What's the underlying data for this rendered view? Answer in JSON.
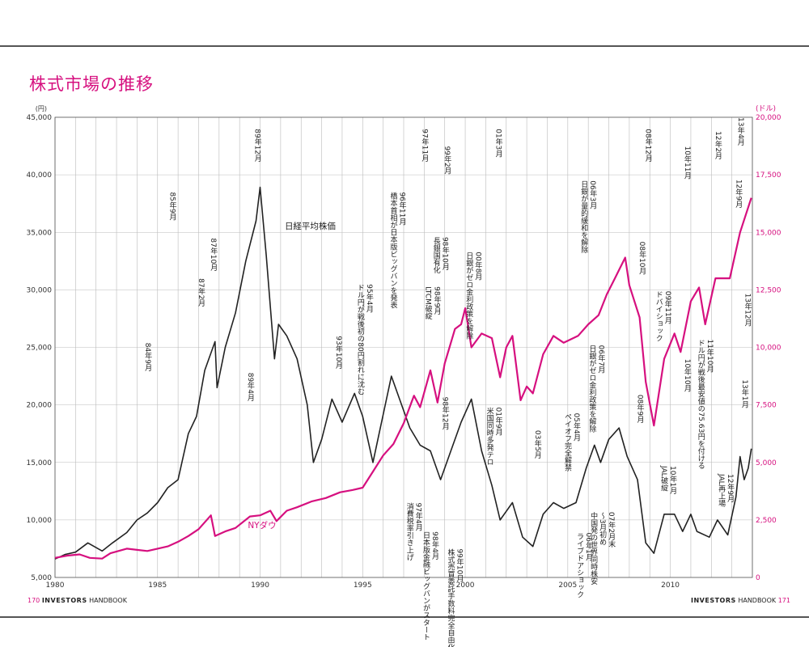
{
  "page": {
    "title": "株式市場の推移",
    "footer_left_num": "170",
    "footer_left_brand": "INVESTORS",
    "footer_left_sub": "HANDBOOK",
    "footer_right_brand": "INVESTORS",
    "footer_right_sub": "HANDBOOK",
    "footer_right_num": "171"
  },
  "colors": {
    "nikkei": "#222222",
    "dow": "#d6107f",
    "grid": "#bbbbbb",
    "title": "#d6107f"
  },
  "chart_data": {
    "type": "line",
    "title": "株式市場の推移",
    "x_range": [
      1980,
      2014
    ],
    "x_ticks": [
      "1980",
      "1985",
      "1990",
      "1995",
      "2000",
      "2005",
      "2010"
    ],
    "y_left": {
      "unit": "(円)",
      "range": [
        5000,
        45000
      ],
      "ticks": [
        "5,000",
        "10,000",
        "15,000",
        "20,000",
        "25,000",
        "30,000",
        "35,000",
        "40,000",
        "45,000"
      ]
    },
    "y_right": {
      "unit": "(ドル)",
      "range": [
        0,
        20000
      ],
      "ticks": [
        "0",
        "2,500",
        "5,000",
        "7,500",
        "10,000",
        "12,500",
        "15,000",
        "17,500",
        "20,000"
      ]
    },
    "grid": true,
    "series": [
      {
        "name": "日経平均株価",
        "axis": "left",
        "points": [
          [
            1980.0,
            6600
          ],
          [
            1980.5,
            7000
          ],
          [
            1981.0,
            7200
          ],
          [
            1981.6,
            8000
          ],
          [
            1982.3,
            7300
          ],
          [
            1982.8,
            8000
          ],
          [
            1983.5,
            8900
          ],
          [
            1984.0,
            10000
          ],
          [
            1984.5,
            10600
          ],
          [
            1985.0,
            11500
          ],
          [
            1985.5,
            12800
          ],
          [
            1986.0,
            13500
          ],
          [
            1986.5,
            17500
          ],
          [
            1986.9,
            19000
          ],
          [
            1987.3,
            23000
          ],
          [
            1987.8,
            25500
          ],
          [
            1987.9,
            21500
          ],
          [
            1988.3,
            25000
          ],
          [
            1988.8,
            28000
          ],
          [
            1989.3,
            32500
          ],
          [
            1989.8,
            36000
          ],
          [
            1990.0,
            38915
          ],
          [
            1990.3,
            33000
          ],
          [
            1990.7,
            24000
          ],
          [
            1990.9,
            27000
          ],
          [
            1991.3,
            26000
          ],
          [
            1991.8,
            24000
          ],
          [
            1992.3,
            20000
          ],
          [
            1992.6,
            15000
          ],
          [
            1993.0,
            17000
          ],
          [
            1993.5,
            20500
          ],
          [
            1994.0,
            18500
          ],
          [
            1994.6,
            21000
          ],
          [
            1995.0,
            19000
          ],
          [
            1995.5,
            15000
          ],
          [
            1995.8,
            17500
          ],
          [
            1996.4,
            22500
          ],
          [
            1996.8,
            20500
          ],
          [
            1997.3,
            18000
          ],
          [
            1997.8,
            16500
          ],
          [
            1998.3,
            16000
          ],
          [
            1998.8,
            13500
          ],
          [
            1999.3,
            16000
          ],
          [
            1999.8,
            18500
          ],
          [
            2000.3,
            20500
          ],
          [
            2000.8,
            16000
          ],
          [
            2001.3,
            13000
          ],
          [
            2001.7,
            10000
          ],
          [
            2002.3,
            11500
          ],
          [
            2002.8,
            8500
          ],
          [
            2003.3,
            7700
          ],
          [
            2003.8,
            10500
          ],
          [
            2004.3,
            11500
          ],
          [
            2004.8,
            11000
          ],
          [
            2005.4,
            11500
          ],
          [
            2005.9,
            14500
          ],
          [
            2006.3,
            16500
          ],
          [
            2006.6,
            15000
          ],
          [
            2007.0,
            17000
          ],
          [
            2007.5,
            18000
          ],
          [
            2007.9,
            15500
          ],
          [
            2008.4,
            13500
          ],
          [
            2008.8,
            8000
          ],
          [
            2009.2,
            7100
          ],
          [
            2009.7,
            10500
          ],
          [
            2010.2,
            10500
          ],
          [
            2010.6,
            9000
          ],
          [
            2011.0,
            10500
          ],
          [
            2011.3,
            9000
          ],
          [
            2011.9,
            8500
          ],
          [
            2012.3,
            10000
          ],
          [
            2012.8,
            8700
          ],
          [
            2013.2,
            12000
          ],
          [
            2013.4,
            15500
          ],
          [
            2013.6,
            13500
          ],
          [
            2013.8,
            14500
          ],
          [
            2013.95,
            16200
          ]
        ]
      },
      {
        "name": "NYダウ",
        "axis": "right",
        "points": [
          [
            1980.0,
            850
          ],
          [
            1980.6,
            950
          ],
          [
            1981.2,
            1000
          ],
          [
            1981.7,
            850
          ],
          [
            1982.3,
            820
          ],
          [
            1982.7,
            1050
          ],
          [
            1983.5,
            1250
          ],
          [
            1984.0,
            1200
          ],
          [
            1984.5,
            1150
          ],
          [
            1985.0,
            1250
          ],
          [
            1985.5,
            1350
          ],
          [
            1986.0,
            1550
          ],
          [
            1986.5,
            1800
          ],
          [
            1987.0,
            2100
          ],
          [
            1987.6,
            2700
          ],
          [
            1987.8,
            1800
          ],
          [
            1988.3,
            2000
          ],
          [
            1988.8,
            2150
          ],
          [
            1989.5,
            2650
          ],
          [
            1990.0,
            2700
          ],
          [
            1990.5,
            2900
          ],
          [
            1990.8,
            2450
          ],
          [
            1991.3,
            2900
          ],
          [
            1991.8,
            3050
          ],
          [
            1992.5,
            3300
          ],
          [
            1993.2,
            3450
          ],
          [
            1993.9,
            3700
          ],
          [
            1994.5,
            3800
          ],
          [
            1995.0,
            3900
          ],
          [
            1995.5,
            4600
          ],
          [
            1996.0,
            5300
          ],
          [
            1996.5,
            5800
          ],
          [
            1997.0,
            6700
          ],
          [
            1997.5,
            7900
          ],
          [
            1997.8,
            7400
          ],
          [
            1998.3,
            9000
          ],
          [
            1998.65,
            7600
          ],
          [
            1999.0,
            9300
          ],
          [
            1999.5,
            10800
          ],
          [
            1999.8,
            11000
          ],
          [
            2000.0,
            11700
          ],
          [
            2000.3,
            10000
          ],
          [
            2000.8,
            10600
          ],
          [
            2001.3,
            10400
          ],
          [
            2001.7,
            8700
          ],
          [
            2002.0,
            10000
          ],
          [
            2002.3,
            10500
          ],
          [
            2002.7,
            7700
          ],
          [
            2003.0,
            8300
          ],
          [
            2003.3,
            8000
          ],
          [
            2003.8,
            9700
          ],
          [
            2004.3,
            10500
          ],
          [
            2004.8,
            10200
          ],
          [
            2005.5,
            10500
          ],
          [
            2006.0,
            11000
          ],
          [
            2006.5,
            11400
          ],
          [
            2006.9,
            12300
          ],
          [
            2007.3,
            13000
          ],
          [
            2007.8,
            13900
          ],
          [
            2008.0,
            12700
          ],
          [
            2008.5,
            11300
          ],
          [
            2008.8,
            8500
          ],
          [
            2009.2,
            6600
          ],
          [
            2009.7,
            9500
          ],
          [
            2010.2,
            10600
          ],
          [
            2010.5,
            9800
          ],
          [
            2011.0,
            12000
          ],
          [
            2011.4,
            12600
          ],
          [
            2011.7,
            11000
          ],
          [
            2012.2,
            13000
          ],
          [
            2012.9,
            13000
          ],
          [
            2013.4,
            15000
          ],
          [
            2013.95,
            16500
          ]
        ]
      }
    ],
    "series_labels": [
      {
        "text": "日経平均株価",
        "x": 1991.2,
        "y": 35300,
        "axis": "left",
        "color": "#222222"
      },
      {
        "text": "NYダウ",
        "x": 1989.4,
        "y": 9300,
        "axis": "left",
        "color": "#d6107f"
      }
    ],
    "annotations": [
      {
        "date": "89年12月",
        "lines": [
          "89年12月"
        ],
        "x": 1989.85,
        "y": 44000
      },
      {
        "date": "85年9月",
        "lines": [
          "85年9月"
        ],
        "x": 1985.7,
        "y": 38500
      },
      {
        "date": "87年10月",
        "lines": [
          "87年10月"
        ],
        "x": 1987.7,
        "y": 34500
      },
      {
        "date": "87年2月",
        "lines": [
          "87年2月"
        ],
        "x": 1987.1,
        "y": 31000
      },
      {
        "date": "84年9月",
        "lines": [
          "84年9月"
        ],
        "x": 1984.5,
        "y": 25400
      },
      {
        "date": "89年4月",
        "lines": [
          "89年4月"
        ],
        "x": 1989.5,
        "y": 22800
      },
      {
        "date": "93年10月",
        "lines": [
          "93年10月"
        ],
        "x": 1993.8,
        "y": 26000
      },
      {
        "date": "95年4月",
        "lines": [
          "95年4月",
          "ドル円が戦後初の80円割れに沈む"
        ],
        "x": 1995.3,
        "y": 30500
      },
      {
        "date": "96年11月",
        "lines": [
          "96年11月",
          "橋本首相が日本版ビッグバンを発表"
        ],
        "x": 1996.9,
        "y": 38500
      },
      {
        "date": "97年11月",
        "lines": [
          "97年11月"
        ],
        "x": 1998.0,
        "y": 44000
      },
      {
        "date": "99年2月",
        "lines": [
          "99年2月"
        ],
        "x": 1999.1,
        "y": 42500
      },
      {
        "date": "98年10月",
        "lines": [
          "98年10月",
          "長銀国有化"
        ],
        "x": 1999.0,
        "y": 34600
      },
      {
        "date": "98年9月",
        "lines": [
          "98年9月",
          "LTCM破綻"
        ],
        "x": 1998.6,
        "y": 30300
      },
      {
        "date": "98年12月",
        "lines": [
          "98年12月"
        ],
        "x": 1999.0,
        "y": 20700
      },
      {
        "date": "00年8月",
        "lines": [
          "00年8月",
          "日銀がゼロ金利政策を解除"
        ],
        "x": 2000.6,
        "y": 33300
      },
      {
        "date": "01年3月",
        "lines": [
          "01年3月"
        ],
        "x": 2001.6,
        "y": 44000
      },
      {
        "date": "01年9月",
        "lines": [
          "01年9月",
          "米国同時多発テロ"
        ],
        "x": 2001.6,
        "y": 19800
      },
      {
        "date": "03年5月",
        "lines": [
          "03年5月"
        ],
        "x": 2003.5,
        "y": 17800
      },
      {
        "date": "97年4月",
        "lines": [
          "97年4月",
          "消費税率引き上げ"
        ],
        "x": 1997.7,
        "y": 11500
      },
      {
        "date": "98年4月",
        "lines": [
          "98年4月",
          "日本版金融ビッグバンがスタート"
        ],
        "x": 1998.5,
        "y": 9000
      },
      {
        "date": "99年10月",
        "lines": [
          "99年10月",
          "株式売買委託手数料完全自由化"
        ],
        "x": 1999.7,
        "y": 7500
      },
      {
        "date": "06年3月",
        "lines": [
          "06年3月",
          "日銀が量的緩和を解除"
        ],
        "x": 2006.2,
        "y": 39500
      },
      {
        "date": "05年4月",
        "lines": [
          "05年4月",
          "ペイオフ完全解禁"
        ],
        "x": 2005.4,
        "y": 19300
      },
      {
        "date": "06年7月",
        "lines": [
          "06年7月",
          "日銀がゼロ金利政策を解除"
        ],
        "x": 2006.6,
        "y": 25200
      },
      {
        "date": "06年1月",
        "lines": [
          "06年1月",
          "ライブドアショック"
        ],
        "x": 2006.0,
        "y": 8900
      },
      {
        "date": "07年2月末",
        "lines": [
          "07年2月末",
          "〜3月初め",
          "中国発の世界同時株安"
        ],
        "x": 2007.1,
        "y": 10700
      },
      {
        "date": "08年12月",
        "lines": [
          "08年12月"
        ],
        "x": 2008.9,
        "y": 44000
      },
      {
        "date": "08年10月",
        "lines": [
          "08年10月"
        ],
        "x": 2008.6,
        "y": 34200
      },
      {
        "date": "08年9月",
        "lines": [
          "08年9月"
        ],
        "x": 2008.5,
        "y": 20900
      },
      {
        "date": "09年11月",
        "lines": [
          "09年11月",
          "ドバイショック"
        ],
        "x": 2009.85,
        "y": 29900
      },
      {
        "date": "10年11月",
        "lines": [
          "10年11月"
        ],
        "x": 2010.8,
        "y": 42500
      },
      {
        "date": "10年10月",
        "lines": [
          "10年10月"
        ],
        "x": 2010.8,
        "y": 24000
      },
      {
        "date": "10年1月",
        "lines": [
          "10年1月",
          "JAL破綻"
        ],
        "x": 2010.1,
        "y": 14700
      },
      {
        "date": "11年10月",
        "lines": [
          "11年10月",
          "ドル円が戦後最安値の75.63円を付ける"
        ],
        "x": 2011.9,
        "y": 25700
      },
      {
        "date": "12年2月",
        "lines": [
          "12年2月"
        ],
        "x": 2012.3,
        "y": 43800
      },
      {
        "date": "12年9月",
        "lines": [
          "12年9月",
          "JAL再上場"
        ],
        "x": 2012.9,
        "y": 14000
      },
      {
        "date": "13年4月",
        "lines": [
          "13年4月"
        ],
        "x": 2013.4,
        "y": 45000
      },
      {
        "date": "12年9月(2)",
        "lines": [
          "12年9月"
        ],
        "x": 2013.3,
        "y": 39600
      },
      {
        "date": "13年12月",
        "lines": [
          "13年12月"
        ],
        "x": 2013.75,
        "y": 29700
      },
      {
        "date": "13年1月",
        "lines": [
          "13年1月"
        ],
        "x": 2013.6,
        "y": 22200
      }
    ]
  }
}
